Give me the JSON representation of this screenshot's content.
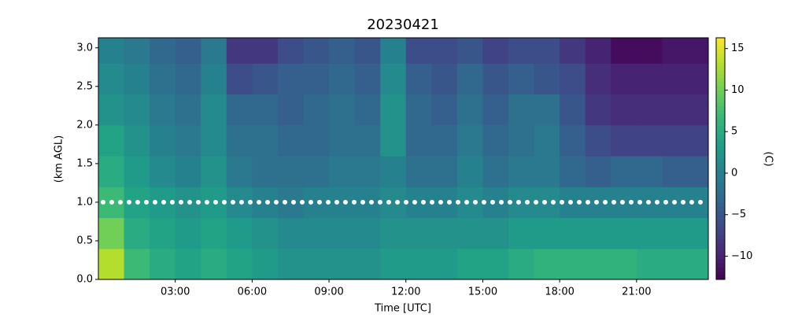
{
  "chart_data": {
    "type": "heatmap",
    "title": "20230421",
    "xlabel": "Time [UTC]",
    "ylabel": "(km AGL)",
    "colorbar_label": "(C)",
    "colormap": "viridis",
    "x_bins": [
      0,
      1,
      2,
      3,
      4,
      5,
      6,
      7,
      8,
      9,
      10,
      11,
      12,
      13,
      14,
      15,
      16,
      17,
      18,
      19,
      20,
      21,
      22,
      23,
      23.8
    ],
    "y_bins": [
      0,
      0.4,
      0.8,
      1.2,
      1.6,
      2.0,
      2.4,
      2.8,
      3.13
    ],
    "z": [
      [
        13,
        7,
        5,
        4,
        5,
        4,
        3,
        2,
        2,
        2,
        2,
        3,
        3,
        3,
        4,
        4,
        5,
        6,
        6,
        6,
        6,
        5,
        5,
        5
      ],
      [
        10,
        5,
        4,
        3,
        4,
        3,
        2,
        1,
        1,
        1,
        1,
        2,
        2,
        2,
        2,
        2,
        3,
        3,
        3,
        3,
        3,
        3,
        3,
        3
      ],
      [
        7,
        4,
        3,
        2,
        3,
        1,
        0,
        -1,
        0,
        0,
        0,
        1,
        0,
        0,
        1,
        0,
        1,
        1,
        0,
        0,
        0,
        0,
        0,
        0
      ],
      [
        5,
        3,
        1,
        0,
        2,
        -1,
        -2,
        -2,
        -2,
        -1,
        -1,
        0,
        -2,
        -2,
        0,
        -2,
        -1,
        -1,
        -3,
        -4,
        -3,
        -3,
        -4,
        -4
      ],
      [
        4,
        2,
        0,
        -1,
        1,
        -2,
        -2,
        -3,
        -3,
        -2,
        -2,
        2,
        -3,
        -3,
        -1,
        -3,
        -2,
        -1,
        -4,
        -6,
        -7,
        -7,
        -7,
        -7
      ],
      [
        2,
        1,
        -1,
        -2,
        1,
        -3,
        -3,
        -4,
        -3,
        -2,
        -3,
        2,
        -3,
        -4,
        -2,
        -4,
        -2,
        -2,
        -5,
        -8,
        -9,
        -9,
        -9,
        -9
      ],
      [
        1,
        0,
        -2,
        -3,
        0,
        -6,
        -5,
        -4,
        -4,
        -3,
        -4,
        1,
        -4,
        -5,
        -3,
        -5,
        -4,
        -5,
        -6,
        -9,
        -10,
        -10,
        -10,
        -10
      ],
      [
        0,
        -1,
        -3,
        -4,
        -1,
        -8,
        -8,
        -6,
        -5,
        -4,
        -5,
        0,
        -6,
        -6,
        -5,
        -7,
        -6,
        -6,
        -8,
        -10,
        -12,
        -12,
        -11,
        -11
      ]
    ],
    "hline": 1.0,
    "hline_color": "#ffffff",
    "xlim": [
      0,
      23.8
    ],
    "xticks": [
      {
        "value": 3,
        "label": "03:00"
      },
      {
        "value": 6,
        "label": "06:00"
      },
      {
        "value": 9,
        "label": "09:00"
      },
      {
        "value": 12,
        "label": "12:00"
      },
      {
        "value": 15,
        "label": "15:00"
      },
      {
        "value": 18,
        "label": "18:00"
      },
      {
        "value": 21,
        "label": "21:00"
      }
    ],
    "ylim": [
      0,
      3.13
    ],
    "yticks": [
      {
        "value": 0,
        "label": "0.0"
      },
      {
        "value": 0.5,
        "label": "0.5"
      },
      {
        "value": 1,
        "label": "1.0"
      },
      {
        "value": 1.5,
        "label": "1.5"
      },
      {
        "value": 2,
        "label": "2.0"
      },
      {
        "value": 2.5,
        "label": "2.5"
      },
      {
        "value": 3,
        "label": "3.0"
      }
    ],
    "clim": [
      -12.8,
      16.3
    ],
    "cticks": [
      {
        "value": -10,
        "label": "−10"
      },
      {
        "value": -5,
        "label": "−5"
      },
      0,
      5,
      10,
      15
    ]
  }
}
